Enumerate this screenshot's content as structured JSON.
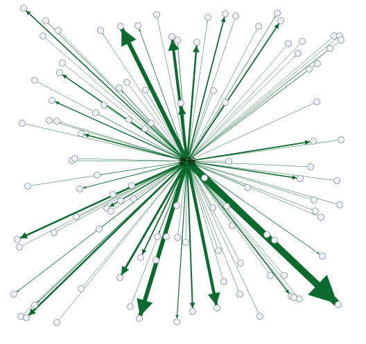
{
  "diagram": {
    "type": "radial-network",
    "center_label": "老爸",
    "edge_color": "#0b6b2f",
    "node_fill": "#eef2f6",
    "node_stroke": "#7d8a96",
    "peripheral_node_count": 120
  }
}
